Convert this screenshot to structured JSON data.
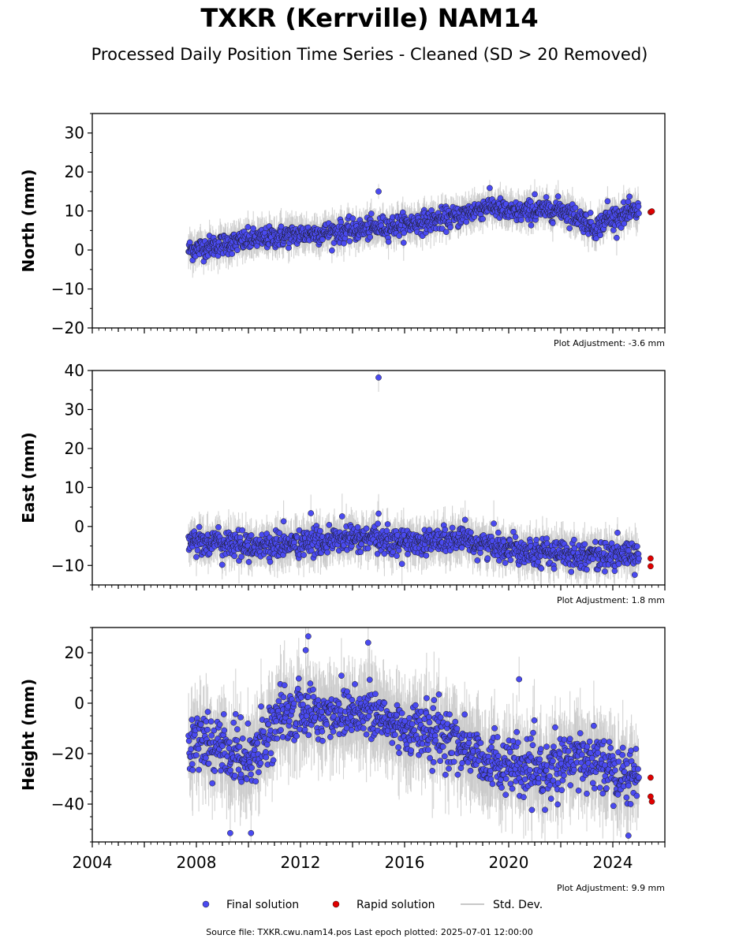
{
  "title": "TXKR (Kerrville) NAM14",
  "subtitle": "Processed Daily Position Time Series - Cleaned (SD > 20 Removed)",
  "footer": "Source file: TXKR.cwu.nam14.pos  Last epoch plotted: 2025-07-01 12:00:00",
  "colors": {
    "final": "#4a4af0",
    "rapid": "#e00000",
    "stddev": "#c8c8c8"
  },
  "chart_data": [
    {
      "type": "scatter",
      "ylabel": "North (mm)",
      "adjustment": "Plot Adjustment: -3.6 mm",
      "xlim": [
        2004,
        2026
      ],
      "ylim": [
        -20,
        35
      ],
      "yticks": [
        30,
        20,
        10,
        0,
        -10,
        -20
      ],
      "ytick_labels": [
        "30",
        "20",
        "10",
        "0",
        "−10",
        "−20"
      ],
      "trend": [
        [
          2007.7,
          0
        ],
        [
          2010,
          2.5
        ],
        [
          2012,
          4
        ],
        [
          2014,
          5
        ],
        [
          2016,
          6.5
        ],
        [
          2018,
          8.5
        ],
        [
          2019.3,
          11.5
        ],
        [
          2020,
          9.5
        ],
        [
          2022,
          10.5
        ],
        [
          2022.8,
          8
        ],
        [
          2023.3,
          5.5
        ],
        [
          2023.8,
          8
        ],
        [
          2025.0,
          10
        ]
      ],
      "scatter_sd": 1.6,
      "outliers": [
        [
          2015.0,
          15
        ],
        [
          2021.0,
          14.3
        ],
        [
          2023.8,
          12.5
        ]
      ],
      "rapid": [
        [
          2025.45,
          9.7
        ],
        [
          2025.5,
          9.9
        ]
      ]
    },
    {
      "type": "scatter",
      "ylabel": "East (mm)",
      "adjustment": "Plot Adjustment: 1.8 mm",
      "xlim": [
        2004,
        2026
      ],
      "ylim": [
        -15,
        40
      ],
      "yticks": [
        40,
        30,
        20,
        10,
        0,
        -10
      ],
      "ytick_labels": [
        "40",
        "30",
        "20",
        "10",
        "0",
        "−10"
      ],
      "trend": [
        [
          2007.7,
          -3.5
        ],
        [
          2010,
          -5
        ],
        [
          2012,
          -4.5
        ],
        [
          2014,
          -3
        ],
        [
          2016,
          -4
        ],
        [
          2018,
          -3.5
        ],
        [
          2019.5,
          -5
        ],
        [
          2020,
          -5.5
        ],
        [
          2022,
          -7
        ],
        [
          2024,
          -7.5
        ],
        [
          2025.0,
          -7
        ]
      ],
      "scatter_sd": 2.0,
      "outliers": [
        [
          2015.0,
          38.2
        ],
        [
          2015.0,
          3.3
        ],
        [
          2012.4,
          3.4
        ],
        [
          2013.6,
          2.6
        ]
      ],
      "rapid": [
        [
          2025.45,
          -8.2
        ],
        [
          2025.45,
          -10.2
        ]
      ]
    },
    {
      "type": "scatter",
      "ylabel": "Height (mm)",
      "adjustment": "Plot Adjustment: 9.9 mm",
      "xlim": [
        2004,
        2026
      ],
      "ylim": [
        -55,
        30
      ],
      "yticks": [
        20,
        0,
        -20,
        -40
      ],
      "ytick_labels": [
        "20",
        "0",
        "−20",
        "−40"
      ],
      "x_major_ticks": [
        2004,
        2008,
        2012,
        2016,
        2020,
        2024
      ],
      "x_tick_labels": [
        "2004",
        "2008",
        "2012",
        "2016",
        "2020",
        "2024"
      ],
      "trend": [
        [
          2007.7,
          -15
        ],
        [
          2009,
          -18
        ],
        [
          2010,
          -22
        ],
        [
          2011,
          -8
        ],
        [
          2012,
          -3
        ],
        [
          2013,
          -5
        ],
        [
          2014,
          -2
        ],
        [
          2015,
          -6
        ],
        [
          2016,
          -10
        ],
        [
          2017,
          -12
        ],
        [
          2018,
          -15
        ],
        [
          2019,
          -22
        ],
        [
          2020,
          -25
        ],
        [
          2021,
          -28
        ],
        [
          2022,
          -25
        ],
        [
          2023,
          -22
        ],
        [
          2024,
          -25
        ],
        [
          2025.0,
          -30
        ]
      ],
      "scatter_sd": 6.5,
      "outliers": [
        [
          2012.3,
          26.5
        ],
        [
          2014.6,
          24
        ],
        [
          2012.2,
          21
        ],
        [
          2020.4,
          9.5
        ],
        [
          2009.3,
          -51.5
        ],
        [
          2010.1,
          -51.5
        ],
        [
          2024.6,
          -52.5
        ]
      ],
      "rapid": [
        [
          2025.45,
          -29.5
        ],
        [
          2025.45,
          -37
        ],
        [
          2025.5,
          -39
        ]
      ]
    }
  ],
  "legend": {
    "final": "Final solution",
    "rapid": "Rapid solution",
    "stddev": "Std. Dev."
  }
}
